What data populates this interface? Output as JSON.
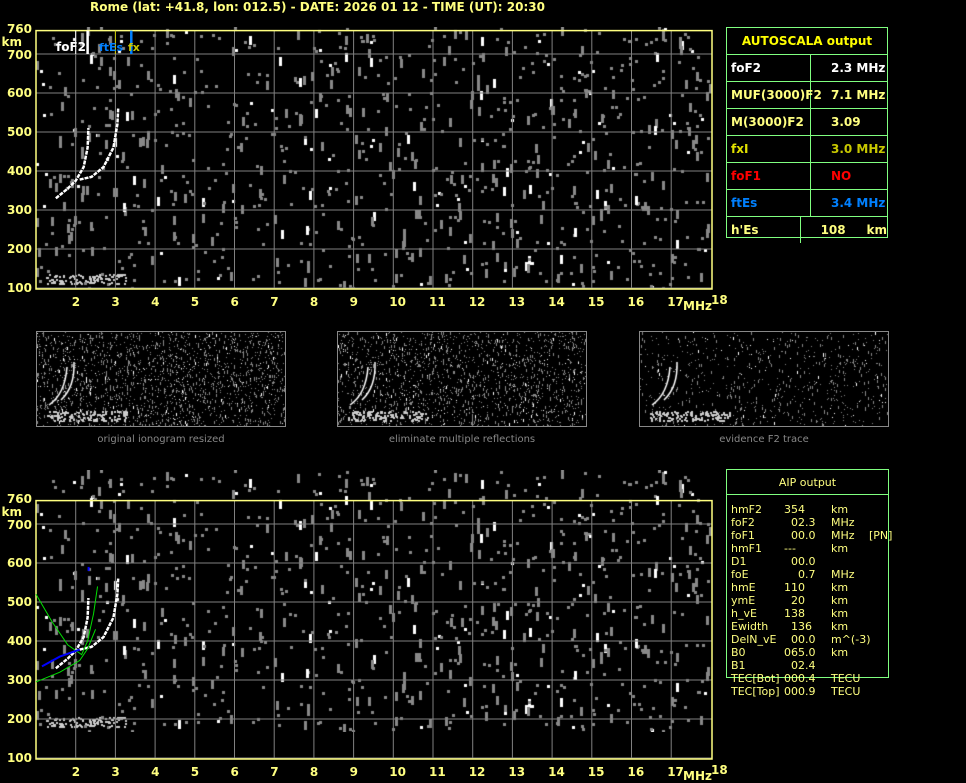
{
  "title": "Rome (lat: +41.8, lon: 012.5) - DATE: 2026 01 12 - TIME (UT): 20:30",
  "axes": {
    "y_ticks": [
      "760",
      "700",
      "600",
      "500",
      "400",
      "300",
      "200",
      "100"
    ],
    "y_unit": "km",
    "x_ticks": [
      "2",
      "3",
      "4",
      "5",
      "6",
      "7",
      "8",
      "9",
      "10",
      "11",
      "12",
      "13",
      "14",
      "15",
      "16",
      "17"
    ],
    "x_unit": "MHz",
    "x_last": "18"
  },
  "markers": {
    "foF2": "foF2",
    "ftEs": "ftEs",
    "fx": "fx"
  },
  "colors": {
    "axis": "#ffff80",
    "grid": "#808080",
    "box": "#80ff80",
    "foF1": "#ff0000",
    "ftEs": "#0080ff",
    "fxI": "#c8c800",
    "model": "#00e000",
    "trace_blue": "#0000ff"
  },
  "autoscala": {
    "header": "AUTOSCALA output",
    "rows": [
      {
        "key": "foF2",
        "value": "2.3 MHz",
        "color": "#ffffff",
        "vcolor": "#ffffff"
      },
      {
        "key": "MUF(3000)F2",
        "value": "7.1 MHz",
        "color": "#ffff80",
        "vcolor": "#ffff80"
      },
      {
        "key": "M(3000)F2",
        "value": "3.09",
        "color": "#ffff80",
        "vcolor": "#ffff80"
      },
      {
        "key": "fxI",
        "value": "3.0 MHz",
        "color": "#e0e000",
        "vcolor": "#c8c800"
      },
      {
        "key": "foF1",
        "value": "NO",
        "color": "#ff0000",
        "vcolor": "#ff0000"
      },
      {
        "key": "ftEs",
        "value": "3.4 MHz",
        "color": "#0080ff",
        "vcolor": "#0080ff"
      },
      {
        "key": "h'Es",
        "value": "108     km",
        "color": "#ffff80",
        "vcolor": "#ffff80"
      }
    ]
  },
  "thumbnails": [
    {
      "label": "original ionogram resized"
    },
    {
      "label": "eliminate multiple reflections"
    },
    {
      "label": "evidence F2 trace"
    }
  ],
  "aip": {
    "header": "AIP output",
    "rows": [
      {
        "k": "hmF2",
        "v": "354",
        "u": "km",
        "x": ""
      },
      {
        "k": "foF2",
        "v": "  02.3",
        "u": "MHz",
        "x": ""
      },
      {
        "k": "foF1",
        "v": "  00.0",
        "u": "MHz",
        "x": "[PN]"
      },
      {
        "k": "hmF1",
        "v": "---",
        "u": "km",
        "x": ""
      },
      {
        "k": "D1",
        "v": "  00.0",
        "u": "",
        "x": ""
      },
      {
        "k": "foE",
        "v": "    0.7",
        "u": "MHz",
        "x": ""
      },
      {
        "k": "hmE",
        "v": "110",
        "u": "km",
        "x": ""
      },
      {
        "k": "ymE",
        "v": "  20",
        "u": "km",
        "x": ""
      },
      {
        "k": "h_vE",
        "v": "138",
        "u": "km",
        "x": ""
      },
      {
        "k": "Ewidth",
        "v": "  136",
        "u": "km",
        "x": ""
      },
      {
        "k": "DelN_vE",
        "v": "  00.0",
        "u": "m^(-3)",
        "x": ""
      },
      {
        "k": "B0",
        "v": "065.0",
        "u": "km",
        "x": ""
      },
      {
        "k": "B1",
        "v": "  02.4",
        "u": "",
        "x": ""
      },
      {
        "k": "TEC[Bot]",
        "v": "000.4",
        "u": "TECU",
        "x": ""
      },
      {
        "k": "TEC[Top]",
        "v": "000.9",
        "u": "TECU",
        "x": ""
      }
    ]
  }
}
